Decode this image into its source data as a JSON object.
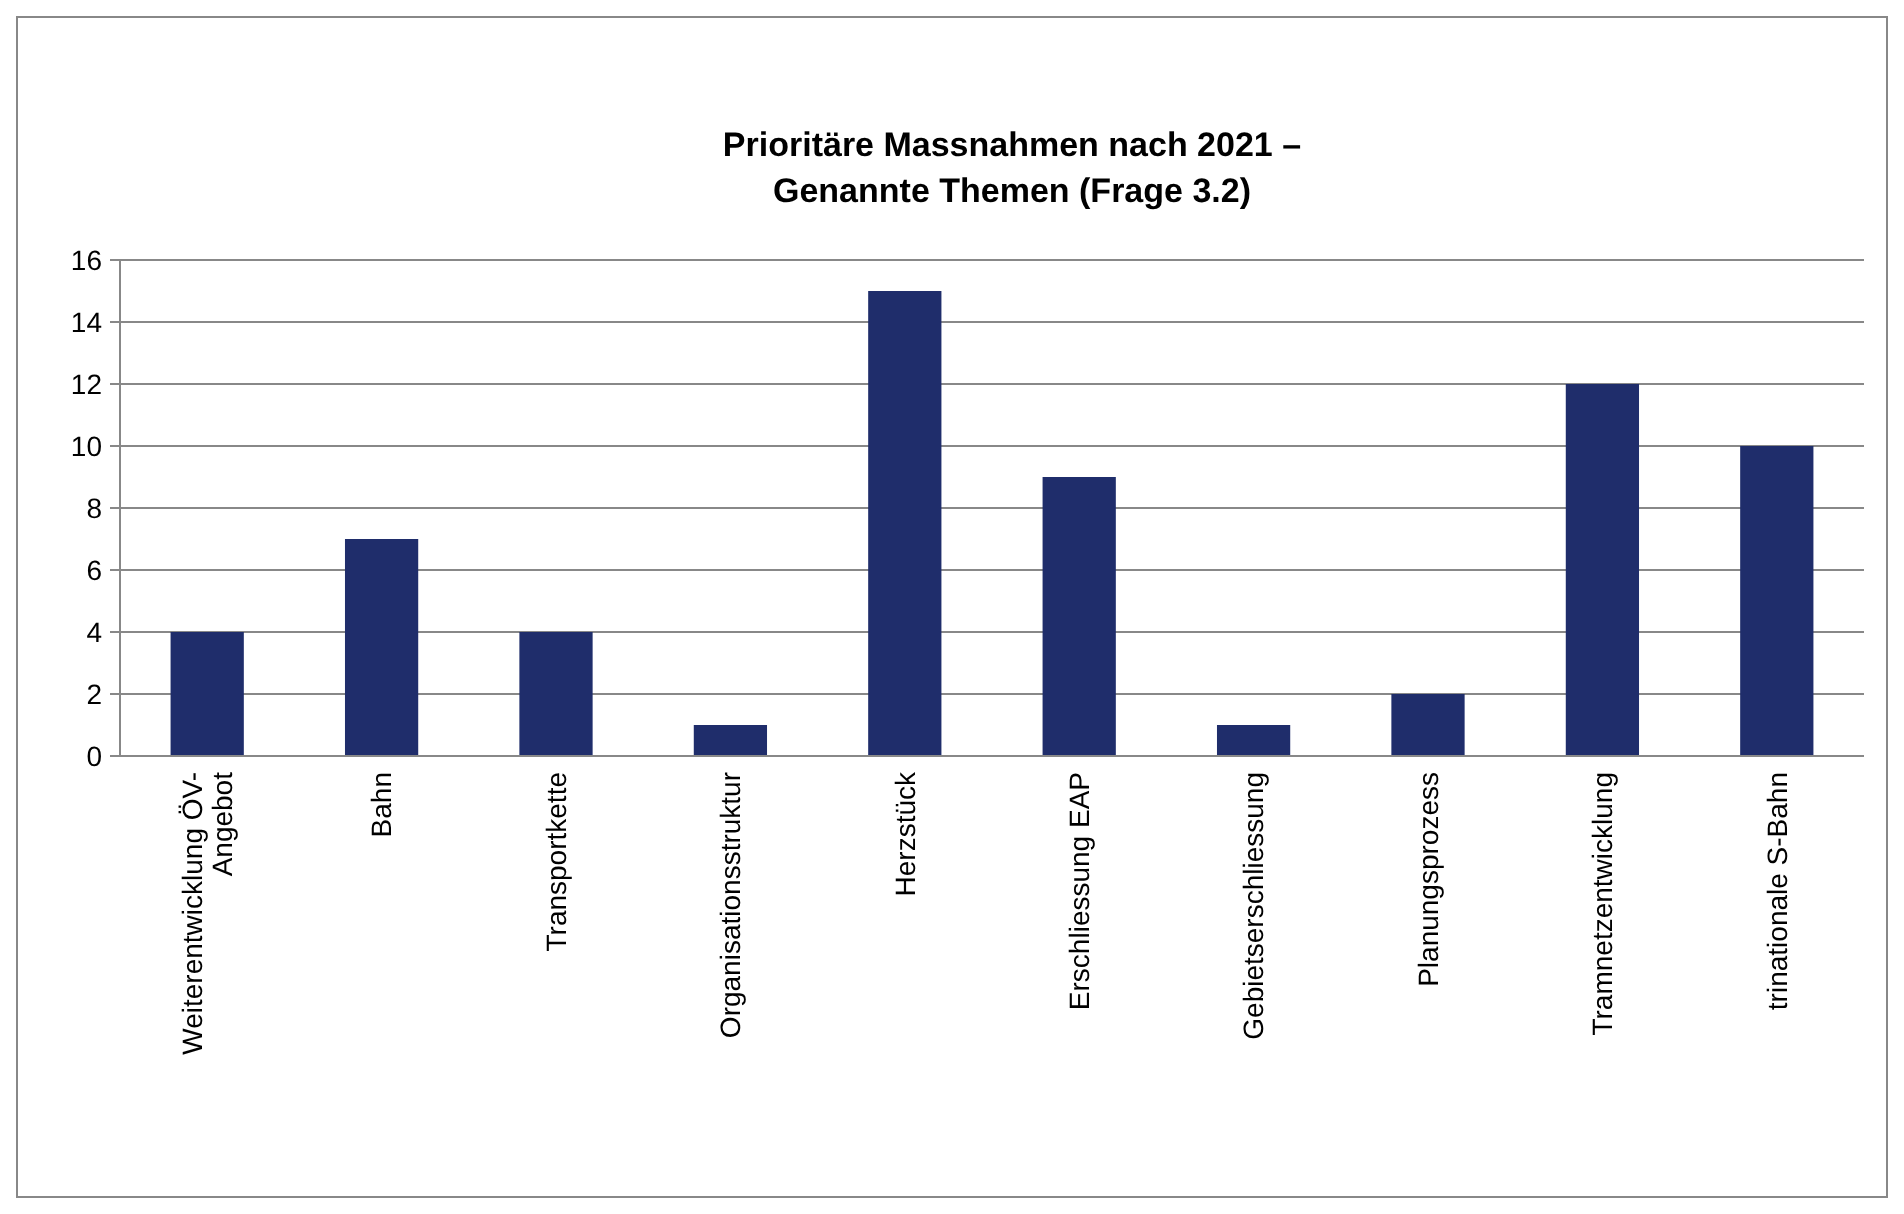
{
  "chart_data": {
    "type": "bar",
    "title": "Prioritäre Massnahmen nach 2021 – Genannte Themen (Frage 3.2)",
    "categories": [
      "Weiterentwicklung ÖV-Angebot",
      "Bahn",
      "Transportkette",
      "Organisationsstruktur",
      "Herzstück",
      "Erschliessung EAP",
      "Gebietserschliessung",
      "Planungsprozess",
      "Tramnetzentwicklung",
      "trinationale S-Bahn"
    ],
    "values": [
      4,
      7,
      4,
      1,
      15,
      9,
      1,
      2,
      12,
      10
    ],
    "color": "#1f2d6b",
    "ylim": [
      0,
      16
    ],
    "yticks": [
      0,
      2,
      4,
      6,
      8,
      10,
      12,
      14,
      16
    ],
    "grid": "y"
  }
}
